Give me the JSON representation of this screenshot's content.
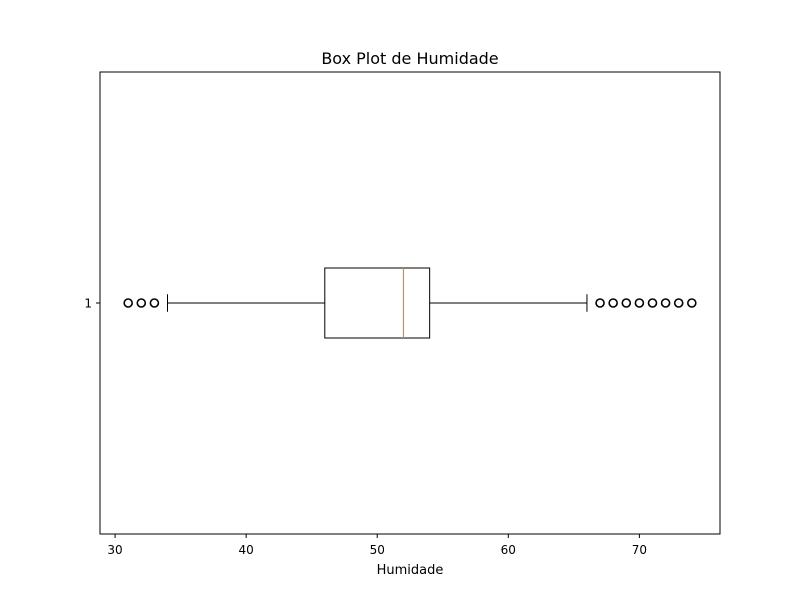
{
  "chart_data": {
    "type": "boxplot",
    "orientation": "horizontal",
    "title": "Box Plot de Humidade",
    "xlabel": "Humidade",
    "ylabel": "",
    "xlim": [
      28.85,
      76.15
    ],
    "x_ticks": [
      30,
      40,
      50,
      60,
      70
    ],
    "y_ticks": [
      "1"
    ],
    "grid": false,
    "series": [
      {
        "category": "1",
        "whisker_low": 34,
        "q1": 46,
        "median": 52,
        "q3": 54,
        "whisker_high": 66,
        "outliers": [
          31,
          32,
          33,
          67,
          68,
          69,
          70,
          71,
          72,
          73,
          74
        ]
      }
    ],
    "colors": {
      "box": "#000000",
      "median": "#ff7f0e",
      "axes": "#000000",
      "background": "#ffffff"
    }
  }
}
